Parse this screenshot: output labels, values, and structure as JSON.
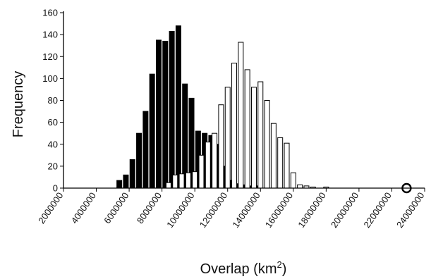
{
  "chart_data": {
    "type": "bar",
    "title": "",
    "xlabel": "Overlap (km",
    "xlabel_sup": "2",
    "xlabel_close": ")",
    "ylabel": "Frequency",
    "xlim": [
      2000000,
      24000000
    ],
    "ylim": [
      0,
      160
    ],
    "x_ticks": [
      2000000,
      4000000,
      6000000,
      8000000,
      10000000,
      12000000,
      14000000,
      16000000,
      18000000,
      20000000,
      22000000,
      24000000
    ],
    "x_tick_labels": [
      "2000000",
      "4000000",
      "6000000",
      "8000000",
      "10000000",
      "12000000",
      "14000000",
      "16000000",
      "18000000",
      "20000000",
      "22000000",
      "24000000"
    ],
    "y_ticks": [
      0,
      20,
      40,
      60,
      80,
      100,
      120,
      140,
      160
    ],
    "y_tick_labels": [
      "0",
      "20",
      "40",
      "60",
      "80",
      "100",
      "120",
      "140",
      "160"
    ],
    "grid": false,
    "legend": "none",
    "series": [
      {
        "fill": "#000000",
        "x": [
          5400000,
          5800000,
          6200000,
          6600000,
          7000000,
          7400000,
          7800000,
          8200000,
          8600000,
          9000000,
          9400000,
          9800000,
          10200000,
          10600000,
          11000000,
          11400000,
          11800000,
          12200000,
          12600000,
          13000000,
          13400000,
          13800000
        ],
        "values": [
          7,
          12,
          26,
          50,
          70,
          104,
          135,
          134,
          143,
          148,
          95,
          82,
          52,
          50,
          48,
          40,
          20,
          7,
          4,
          3,
          2,
          2
        ]
      },
      {
        "fill": "#ffffff",
        "x": [
          8400000,
          8800000,
          9200000,
          9600000,
          10000000,
          10400000,
          10800000,
          11200000,
          11600000,
          12000000,
          12400000,
          12800000,
          13200000,
          13600000,
          14000000,
          14400000,
          14800000,
          15200000,
          15600000,
          16000000,
          16400000,
          16800000,
          17200000,
          18000000
        ],
        "values": [
          5,
          12,
          13,
          14,
          15,
          30,
          42,
          50,
          76,
          92,
          114,
          133,
          108,
          92,
          97,
          80,
          59,
          46,
          41,
          14,
          3,
          2,
          1,
          1
        ]
      }
    ],
    "observed_point": {
      "x": 22900000,
      "y": 0
    }
  }
}
